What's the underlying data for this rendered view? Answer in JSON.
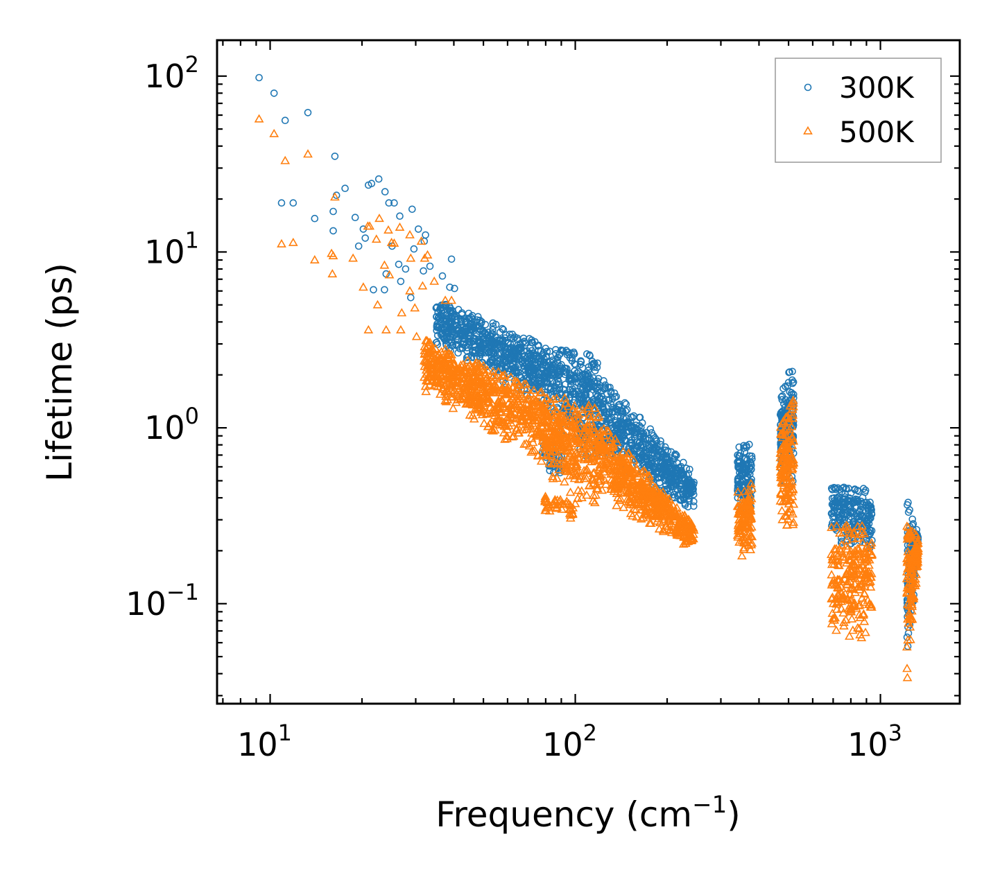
{
  "chart_data": {
    "type": "scatter",
    "title": "",
    "xlabel": "Frequency (cm",
    "xlabel_sup": "−1",
    "xlabel_tail": ")",
    "ylabel": "Lifetime (ps)",
    "xscale": "log",
    "yscale": "log",
    "xlim": [
      6.7,
      1820
    ],
    "ylim": [
      0.027,
      160
    ],
    "x_ticks": [
      {
        "value": 10,
        "base": "10",
        "exp": "1"
      },
      {
        "value": 100,
        "base": "10",
        "exp": "2"
      },
      {
        "value": 1000,
        "base": "10",
        "exp": "3"
      }
    ],
    "y_ticks": [
      {
        "value": 0.1,
        "base": "10",
        "exp": "−1"
      },
      {
        "value": 1,
        "base": "10",
        "exp": "0"
      },
      {
        "value": 10,
        "base": "10",
        "exp": "1"
      },
      {
        "value": 100,
        "base": "10",
        "exp": "2"
      }
    ],
    "legend_position": "top-right",
    "series": [
      {
        "name": "300K",
        "marker": "circle",
        "color": "#1f77b4",
        "highlight_points": [
          [
            9.2,
            98
          ],
          [
            10.3,
            80
          ],
          [
            11.2,
            56
          ],
          [
            13.3,
            62
          ],
          [
            10.9,
            19
          ],
          [
            11.9,
            19
          ],
          [
            14.0,
            15.5
          ],
          [
            16.3,
            35
          ],
          [
            16.1,
            17
          ],
          [
            16.5,
            21
          ],
          [
            17.6,
            23
          ],
          [
            16.1,
            13.2
          ],
          [
            21.0,
            24
          ],
          [
            21.5,
            24.5
          ],
          [
            22.7,
            26
          ],
          [
            23.8,
            22
          ],
          [
            25.5,
            19
          ],
          [
            24.5,
            19
          ],
          [
            29.2,
            17.5
          ],
          [
            19.0,
            15.7
          ],
          [
            19.5,
            10.8
          ],
          [
            20.5,
            12
          ],
          [
            20.2,
            13.5
          ],
          [
            26.6,
            16
          ],
          [
            30.6,
            13.5
          ],
          [
            32.3,
            12.5
          ],
          [
            32.0,
            11.5
          ],
          [
            29.6,
            10.4
          ],
          [
            25.1,
            10.8
          ],
          [
            26.4,
            8.5
          ],
          [
            27.8,
            8.0
          ],
          [
            31.8,
            7.8
          ],
          [
            33.4,
            8.3
          ],
          [
            21.8,
            6.1
          ],
          [
            23.7,
            6.1
          ],
          [
            39.3,
            9.1
          ],
          [
            26.8,
            6.8
          ],
          [
            24.0,
            7.5
          ],
          [
            38.8,
            6.3
          ],
          [
            40.2,
            6.2
          ],
          [
            36.7,
            7.3
          ],
          [
            28.9,
            5.5
          ],
          [
            35.0,
            4.8
          ]
        ],
        "clusters": [
          {
            "x": [
              35,
              85
            ],
            "y_hi": [
              5.5,
              2.8
            ],
            "y_lo": [
              3.0,
              1.2
            ],
            "n": 650
          },
          {
            "x": [
              85,
              120
            ],
            "y_hi": [
              2.9,
              2.6
            ],
            "y_lo": [
              1.0,
              0.55
            ],
            "n": 300
          },
          {
            "x": [
              78,
              92
            ],
            "y_hi": [
              0.9,
              0.75
            ],
            "y_lo": [
              0.55,
              0.52
            ],
            "n": 40
          },
          {
            "x": [
              120,
              245
            ],
            "y_hi": [
              2.0,
              0.55
            ],
            "y_lo": [
              0.7,
              0.33
            ],
            "n": 550
          },
          {
            "x": [
              340,
              380
            ],
            "y_hi": [
              0.78,
              0.86
            ],
            "y_lo": [
              0.32,
              0.32
            ],
            "n": 120
          },
          {
            "x": [
              470,
              520
            ],
            "y_hi": [
              1.6,
              2.4
            ],
            "y_lo": [
              0.45,
              0.42
            ],
            "n": 170
          },
          {
            "x": [
              690,
              940
            ],
            "y_hi": [
              0.47,
              0.45
            ],
            "y_lo": [
              0.22,
              0.2
            ],
            "n": 230
          },
          {
            "x": [
              1220,
              1330
            ],
            "y_hi": [
              0.43,
              0.26
            ],
            "y_lo": [
              0.04,
              0.2
            ],
            "n": 150
          }
        ]
      },
      {
        "name": "500K",
        "marker": "triangle",
        "color": "#ff7f0e",
        "highlight_points": [
          [
            9.2,
            57
          ],
          [
            10.3,
            47
          ],
          [
            11.2,
            33
          ],
          [
            13.3,
            36
          ],
          [
            10.9,
            11.1
          ],
          [
            11.9,
            11.3
          ],
          [
            14.0,
            9.0
          ],
          [
            16.3,
            20.5
          ],
          [
            16.1,
            9.5
          ],
          [
            15.9,
            9.8
          ],
          [
            16.0,
            7.5
          ],
          [
            18.7,
            9.2
          ],
          [
            20.2,
            6.3
          ],
          [
            21.2,
            14
          ],
          [
            20.9,
            14
          ],
          [
            22.3,
            11.8
          ],
          [
            22.8,
            15.5
          ],
          [
            24.4,
            13.3
          ],
          [
            25.0,
            11.3
          ],
          [
            26.6,
            13.8
          ],
          [
            25.5,
            11.2
          ],
          [
            28.7,
            12.5
          ],
          [
            31.3,
            11.5
          ],
          [
            32.8,
            9.6
          ],
          [
            32.1,
            9.2
          ],
          [
            28.9,
            9.2
          ],
          [
            23.7,
            8.4
          ],
          [
            24.6,
            7.4
          ],
          [
            28.7,
            6.0
          ],
          [
            31.6,
            6.4
          ],
          [
            34.5,
            6.8
          ],
          [
            22.5,
            5.0
          ],
          [
            26.8,
            3.6
          ],
          [
            27.0,
            4.5
          ],
          [
            29.8,
            4.8
          ],
          [
            21.0,
            3.6
          ],
          [
            24.0,
            3.6
          ],
          [
            30.2,
            3.3
          ],
          [
            32.9,
            2.9
          ],
          [
            37.5,
            5.3
          ],
          [
            39.3,
            5.3
          ],
          [
            32.0,
            2.4
          ],
          [
            35.8,
            2.6
          ],
          [
            38.0,
            2.6
          ],
          [
            40.8,
            2.1
          ]
        ],
        "clusters": [
          {
            "x": [
              32,
              80
            ],
            "y_hi": [
              3.2,
              1.6
            ],
            "y_lo": [
              1.6,
              0.62
            ],
            "n": 650
          },
          {
            "x": [
              80,
              120
            ],
            "y_hi": [
              1.6,
              1.3
            ],
            "y_lo": [
              0.52,
              0.32
            ],
            "n": 320
          },
          {
            "x": [
              78,
              100
            ],
            "y_hi": [
              0.42,
              0.4
            ],
            "y_lo": [
              0.32,
              0.3
            ],
            "n": 40
          },
          {
            "x": [
              120,
              245
            ],
            "y_hi": [
              1.1,
              0.28
            ],
            "y_lo": [
              0.4,
              0.2
            ],
            "n": 550
          },
          {
            "x": [
              340,
              380
            ],
            "y_hi": [
              0.44,
              0.5
            ],
            "y_lo": [
              0.18,
              0.2
            ],
            "n": 120
          },
          {
            "x": [
              470,
              520
            ],
            "y_hi": [
              1.0,
              1.5
            ],
            "y_lo": [
              0.28,
              0.25
            ],
            "n": 170
          },
          {
            "x": [
              690,
              940
            ],
            "y_hi": [
              0.28,
              0.28
            ],
            "y_lo": [
              0.06,
              0.06
            ],
            "n": 230
          },
          {
            "x": [
              1220,
              1330
            ],
            "y_hi": [
              0.28,
              0.24
            ],
            "y_lo": [
              0.033,
              0.18
            ],
            "n": 150
          }
        ]
      }
    ]
  }
}
